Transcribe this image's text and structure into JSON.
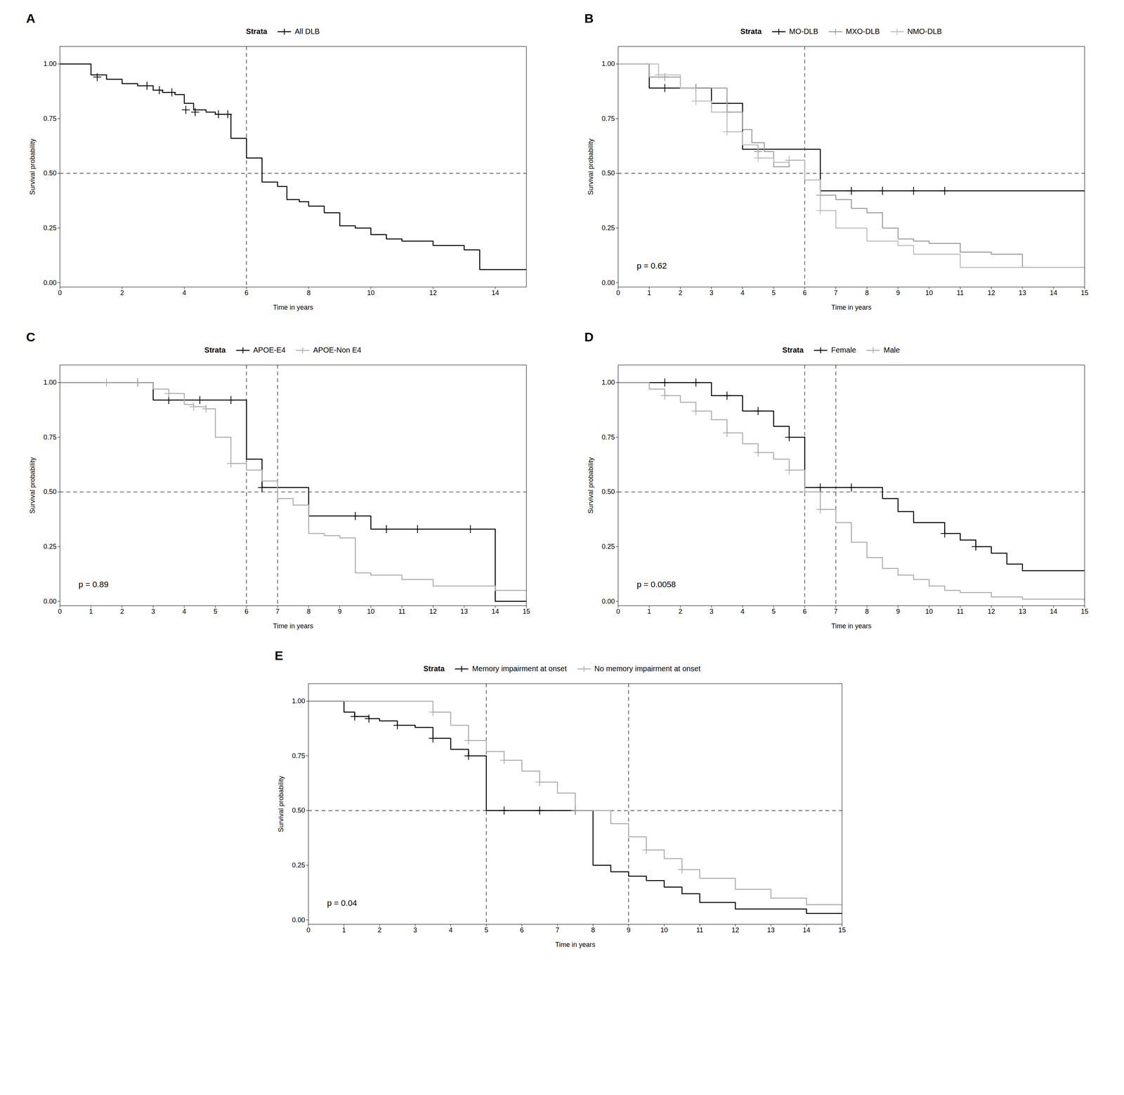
{
  "chart_data": [
    {
      "type": "step",
      "title": "A",
      "xlabel": "Time in years",
      "ylabel": "Survival probability",
      "legend_title": "Strata",
      "legend": "top",
      "series": [
        {
          "name": "All DLB",
          "color": "#000000",
          "marker": "plus",
          "x": [
            0,
            1,
            1.5,
            2,
            2.5,
            3,
            3.3,
            3.7,
            4,
            4.3,
            4.7,
            5,
            5.5,
            6,
            6.5,
            7,
            7.3,
            7.7,
            8,
            8.5,
            9,
            9.5,
            10,
            10.5,
            11,
            12,
            13,
            13.5,
            15
          ],
          "values": [
            1.0,
            0.95,
            0.93,
            0.91,
            0.9,
            0.88,
            0.87,
            0.86,
            0.82,
            0.79,
            0.78,
            0.77,
            0.66,
            0.57,
            0.46,
            0.44,
            0.38,
            0.37,
            0.35,
            0.32,
            0.26,
            0.25,
            0.22,
            0.2,
            0.19,
            0.17,
            0.15,
            0.06,
            0.06
          ],
          "censor_x": [
            1.2,
            2.8,
            3.2,
            3.6,
            4.05,
            4.35,
            5.1,
            5.4
          ],
          "censor_values": [
            0.94,
            0.9,
            0.88,
            0.87,
            0.79,
            0.78,
            0.77,
            0.77
          ]
        }
      ],
      "reference_lines": {
        "x": [
          6
        ],
        "y": [
          0.5
        ],
        "line_style": "dashed"
      },
      "xlim": [
        0,
        15
      ],
      "xticks": [
        0,
        2,
        4,
        6,
        8,
        10,
        12,
        14
      ],
      "ylim": [
        -0.02,
        1.08
      ],
      "yticks": [
        {
          "value": 0,
          "label": "0.00"
        },
        0.25,
        {
          "value": 0.5,
          "label": "0.50"
        },
        0.75,
        {
          "value": 1,
          "label": "1.00"
        }
      ]
    },
    {
      "type": "step",
      "title": "B",
      "xlabel": "Time in years",
      "ylabel": "Survival probability",
      "legend_title": "Strata",
      "legend": "top",
      "annotation": "p = 0.62",
      "series": [
        {
          "name": "MO-DLB",
          "color": "#000000",
          "marker": "plus",
          "x": [
            0,
            1,
            1.5,
            2,
            2.5,
            3,
            3.5,
            4,
            4.5,
            5,
            5.5,
            6,
            6.5,
            7,
            7.5,
            8,
            8.5,
            9,
            10,
            10.5,
            11,
            15
          ],
          "values": [
            1.0,
            0.89,
            0.89,
            0.89,
            0.89,
            0.82,
            0.82,
            0.61,
            0.61,
            0.61,
            0.61,
            0.61,
            0.42,
            0.42,
            0.42,
            0.42,
            0.42,
            0.42,
            0.42,
            0.42,
            0.42,
            0.42
          ],
          "censor_x": [
            1.5,
            2.5,
            3.5,
            4.5,
            7.5,
            8.5,
            9.5,
            10.5
          ],
          "censor_values": [
            0.89,
            0.89,
            0.82,
            0.61,
            0.42,
            0.42,
            0.42,
            0.42
          ]
        },
        {
          "name": "MXO-DLB",
          "color": "#999999",
          "marker": "plus",
          "x": [
            0,
            1,
            1.5,
            2,
            2.5,
            3,
            3.5,
            4,
            4.3,
            4.7,
            5,
            5.5,
            6,
            6.5,
            7,
            7.5,
            8,
            8.5,
            9,
            9.5,
            10,
            11,
            12,
            13,
            14,
            15
          ],
          "values": [
            1.0,
            0.94,
            0.94,
            0.89,
            0.89,
            0.89,
            0.78,
            0.7,
            0.64,
            0.6,
            0.53,
            0.56,
            0.47,
            0.4,
            0.38,
            0.34,
            0.32,
            0.25,
            0.2,
            0.19,
            0.18,
            0.14,
            0.13,
            0.07,
            0.07,
            0.07
          ],
          "censor_x": [
            1.5,
            2.5,
            3.5,
            4.5,
            5.5,
            6.5
          ],
          "censor_values": [
            0.94,
            0.89,
            0.78,
            0.6,
            0.56,
            0.4
          ]
        },
        {
          "name": "NMO-DLB",
          "color": "#bbbbbb",
          "marker": "plus",
          "x": [
            0,
            1,
            1.3,
            2,
            2.5,
            3,
            3.5,
            4,
            4.5,
            5,
            5.5,
            6,
            6.5,
            7,
            8,
            9,
            9.5,
            10,
            11,
            12,
            13,
            14,
            15
          ],
          "values": [
            1.0,
            1.0,
            0.95,
            0.89,
            0.83,
            0.78,
            0.69,
            0.63,
            0.57,
            0.55,
            0.56,
            0.47,
            0.33,
            0.25,
            0.19,
            0.17,
            0.13,
            0.13,
            0.07,
            0.07,
            0.07,
            0.07,
            0.07
          ],
          "censor_x": [
            1.3,
            2.5,
            3.5,
            4.5,
            5.5,
            6.5
          ],
          "censor_values": [
            0.95,
            0.83,
            0.69,
            0.57,
            0.56,
            0.33
          ]
        }
      ],
      "reference_lines": {
        "x": [
          6
        ],
        "y": [
          0.5
        ],
        "line_style": "dashed"
      },
      "xlim": [
        0,
        15
      ],
      "xticks": [
        0,
        1,
        2,
        3,
        4,
        5,
        6,
        7,
        8,
        9,
        10,
        11,
        12,
        13,
        14,
        15
      ],
      "ylim": [
        -0.02,
        1.08
      ],
      "yticks": [
        {
          "value": 0,
          "label": "0.00"
        },
        0.25,
        {
          "value": 0.5,
          "label": "0.50"
        },
        0.75,
        {
          "value": 1,
          "label": "1.00"
        }
      ]
    },
    {
      "type": "step",
      "title": "C",
      "xlabel": "Time in years",
      "ylabel": "Survival probability",
      "legend_title": "Strata",
      "legend": "top",
      "annotation": "p = 0.89",
      "series": [
        {
          "name": "APOE-E4",
          "color": "#000000",
          "marker": "plus",
          "x": [
            0,
            1,
            2,
            2.5,
            3,
            3.5,
            4,
            4.5,
            5,
            5.5,
            6,
            6.5,
            7,
            7.5,
            8,
            8.5,
            9,
            9.5,
            10,
            10.5,
            11,
            12,
            13,
            14,
            15
          ],
          "values": [
            1.0,
            1.0,
            1.0,
            1.0,
            0.92,
            0.92,
            0.92,
            0.92,
            0.92,
            0.92,
            0.65,
            0.52,
            0.52,
            0.52,
            0.39,
            0.39,
            0.39,
            0.39,
            0.33,
            0.33,
            0.33,
            0.33,
            0.33,
            0.0,
            0.0
          ],
          "censor_x": [
            2.5,
            3.5,
            4.5,
            5.5,
            6.5,
            9.5,
            10.5,
            11.5,
            13.2
          ],
          "censor_values": [
            1.0,
            0.92,
            0.92,
            0.92,
            0.52,
            0.39,
            0.33,
            0.33,
            0.33
          ]
        },
        {
          "name": "APOE-Non E4",
          "color": "#aaaaaa",
          "marker": "plus",
          "x": [
            0,
            0.5,
            1,
            1.5,
            2,
            2.5,
            3,
            3.5,
            4,
            4.3,
            4.7,
            5,
            5.5,
            6,
            6.5,
            7,
            7.5,
            8,
            8.5,
            9,
            9.5,
            10,
            11,
            12,
            13,
            14,
            15
          ],
          "values": [
            1.0,
            1.0,
            1.0,
            1.0,
            1.0,
            1.0,
            0.97,
            0.95,
            0.9,
            0.89,
            0.88,
            0.75,
            0.63,
            0.6,
            0.55,
            0.47,
            0.44,
            0.31,
            0.3,
            0.29,
            0.13,
            0.12,
            0.1,
            0.07,
            0.07,
            0.05,
            0.05
          ],
          "censor_x": [
            1.5,
            2.5,
            3.5,
            4.3,
            4.7,
            5.5
          ],
          "censor_values": [
            1.0,
            1.0,
            0.95,
            0.89,
            0.88,
            0.63
          ]
        }
      ],
      "reference_lines": {
        "x": [
          6,
          7
        ],
        "y": [
          0.5
        ],
        "line_style": "dashed"
      },
      "xlim": [
        0,
        15
      ],
      "xticks": [
        0,
        1,
        2,
        3,
        4,
        5,
        6,
        7,
        8,
        9,
        10,
        11,
        12,
        13,
        14,
        15
      ],
      "ylim": [
        -0.02,
        1.08
      ],
      "yticks": [
        {
          "value": 0,
          "label": "0.00"
        },
        0.25,
        {
          "value": 0.5,
          "label": "0.50"
        },
        0.75,
        {
          "value": 1,
          "label": "1.00"
        }
      ]
    },
    {
      "type": "step",
      "title": "D",
      "xlabel": "Time in years",
      "ylabel": "Survival probability",
      "legend_title": "Strata",
      "legend": "top",
      "annotation": "p = 0.0058",
      "series": [
        {
          "name": "Female",
          "color": "#000000",
          "marker": "plus",
          "x": [
            0,
            0.5,
            1,
            1.5,
            2,
            2.5,
            3,
            3.5,
            4,
            4.5,
            5,
            5.5,
            6,
            6.5,
            7,
            7.5,
            8,
            8.5,
            9,
            9.5,
            10,
            10.5,
            11,
            11.5,
            12,
            12.5,
            13,
            15
          ],
          "values": [
            1.0,
            1.0,
            1.0,
            1.0,
            1.0,
            1.0,
            0.94,
            0.94,
            0.87,
            0.87,
            0.8,
            0.75,
            0.52,
            0.52,
            0.52,
            0.52,
            0.52,
            0.47,
            0.41,
            0.36,
            0.36,
            0.31,
            0.28,
            0.25,
            0.22,
            0.17,
            0.14,
            0.14
          ],
          "censor_x": [
            1.5,
            2.5,
            3.5,
            4.5,
            5.5,
            6.5,
            7.5,
            10.5,
            11.5
          ],
          "censor_values": [
            1.0,
            1.0,
            0.94,
            0.87,
            0.75,
            0.52,
            0.52,
            0.31,
            0.25
          ]
        },
        {
          "name": "Male",
          "color": "#aaaaaa",
          "marker": "plus",
          "x": [
            0,
            1,
            1.5,
            2,
            2.5,
            3,
            3.5,
            4,
            4.5,
            5,
            5.5,
            6,
            6.5,
            7,
            7.5,
            8,
            8.5,
            9,
            9.5,
            10,
            10.5,
            11,
            12,
            13,
            15
          ],
          "values": [
            1.0,
            0.97,
            0.94,
            0.91,
            0.87,
            0.83,
            0.77,
            0.72,
            0.68,
            0.65,
            0.6,
            0.5,
            0.42,
            0.36,
            0.27,
            0.2,
            0.15,
            0.12,
            0.1,
            0.07,
            0.05,
            0.04,
            0.02,
            0.01,
            0.0
          ],
          "censor_x": [
            1.5,
            2.5,
            3.5,
            4.5,
            5.5,
            6.5
          ],
          "censor_values": [
            0.94,
            0.87,
            0.77,
            0.68,
            0.6,
            0.42
          ]
        }
      ],
      "reference_lines": {
        "x": [
          6,
          7
        ],
        "y": [
          0.5
        ],
        "line_style": "dashed"
      },
      "xlim": [
        0,
        15
      ],
      "xticks": [
        0,
        1,
        2,
        3,
        4,
        5,
        6,
        7,
        8,
        9,
        10,
        11,
        12,
        13,
        14,
        15
      ],
      "ylim": [
        -0.02,
        1.08
      ],
      "yticks": [
        {
          "value": 0,
          "label": "0.00"
        },
        0.25,
        {
          "value": 0.5,
          "label": "0.50"
        },
        0.75,
        {
          "value": 1,
          "label": "1.00"
        }
      ]
    },
    {
      "type": "step",
      "title": "E",
      "xlabel": "Time in years",
      "ylabel": "Survival probability",
      "legend_title": "Strata",
      "legend": "top",
      "annotation": "p = 0.04",
      "series": [
        {
          "name": "Memory impairment at onset",
          "color": "#000000",
          "marker": "plus",
          "x": [
            0,
            1,
            1.3,
            1.7,
            2,
            2.5,
            3,
            3.5,
            4,
            4.5,
            5,
            5.5,
            6,
            6.5,
            7,
            7.5,
            8,
            8.5,
            9,
            9.5,
            10,
            10.5,
            11,
            12,
            13,
            14,
            15
          ],
          "values": [
            1.0,
            0.95,
            0.93,
            0.92,
            0.91,
            0.89,
            0.88,
            0.83,
            0.78,
            0.75,
            0.5,
            0.5,
            0.5,
            0.5,
            0.5,
            0.5,
            0.25,
            0.22,
            0.2,
            0.18,
            0.15,
            0.12,
            0.08,
            0.05,
            0.05,
            0.03,
            0.03
          ],
          "censor_x": [
            1.3,
            1.7,
            2.5,
            3.5,
            4.5,
            5.5,
            6.5,
            7.5
          ],
          "censor_values": [
            0.93,
            0.92,
            0.89,
            0.83,
            0.75,
            0.5,
            0.5,
            0.5
          ]
        },
        {
          "name": "No memory impairment at onset",
          "color": "#aaaaaa",
          "marker": "plus",
          "x": [
            0,
            0.5,
            1,
            1.5,
            2,
            2.5,
            3,
            3.5,
            4,
            4.5,
            5,
            5.5,
            6,
            6.5,
            7,
            7.5,
            8,
            8.5,
            9,
            9.5,
            10,
            10.5,
            11,
            12,
            13,
            14,
            15
          ],
          "values": [
            1.0,
            1.0,
            1.0,
            1.0,
            1.0,
            1.0,
            1.0,
            0.95,
            0.89,
            0.82,
            0.77,
            0.73,
            0.68,
            0.63,
            0.58,
            0.5,
            0.5,
            0.44,
            0.38,
            0.32,
            0.28,
            0.23,
            0.19,
            0.14,
            0.1,
            0.07,
            0.07
          ],
          "censor_x": [
            3.5,
            4.5,
            5.5,
            6.5,
            7.5,
            9.5,
            10.5
          ],
          "censor_values": [
            0.95,
            0.82,
            0.73,
            0.63,
            0.5,
            0.32,
            0.23
          ]
        }
      ],
      "reference_lines": {
        "x": [
          5,
          9
        ],
        "y": [
          0.5
        ],
        "line_style": "dashed"
      },
      "xlim": [
        0,
        15
      ],
      "xticks": [
        0,
        1,
        2,
        3,
        4,
        5,
        6,
        7,
        8,
        9,
        10,
        11,
        12,
        13,
        14,
        15
      ],
      "ylim": [
        -0.02,
        1.08
      ],
      "yticks": [
        {
          "value": 0,
          "label": "0.00"
        },
        0.25,
        {
          "value": 0.5,
          "label": "0.50"
        },
        0.75,
        {
          "value": 1,
          "label": "1.00"
        }
      ]
    }
  ]
}
